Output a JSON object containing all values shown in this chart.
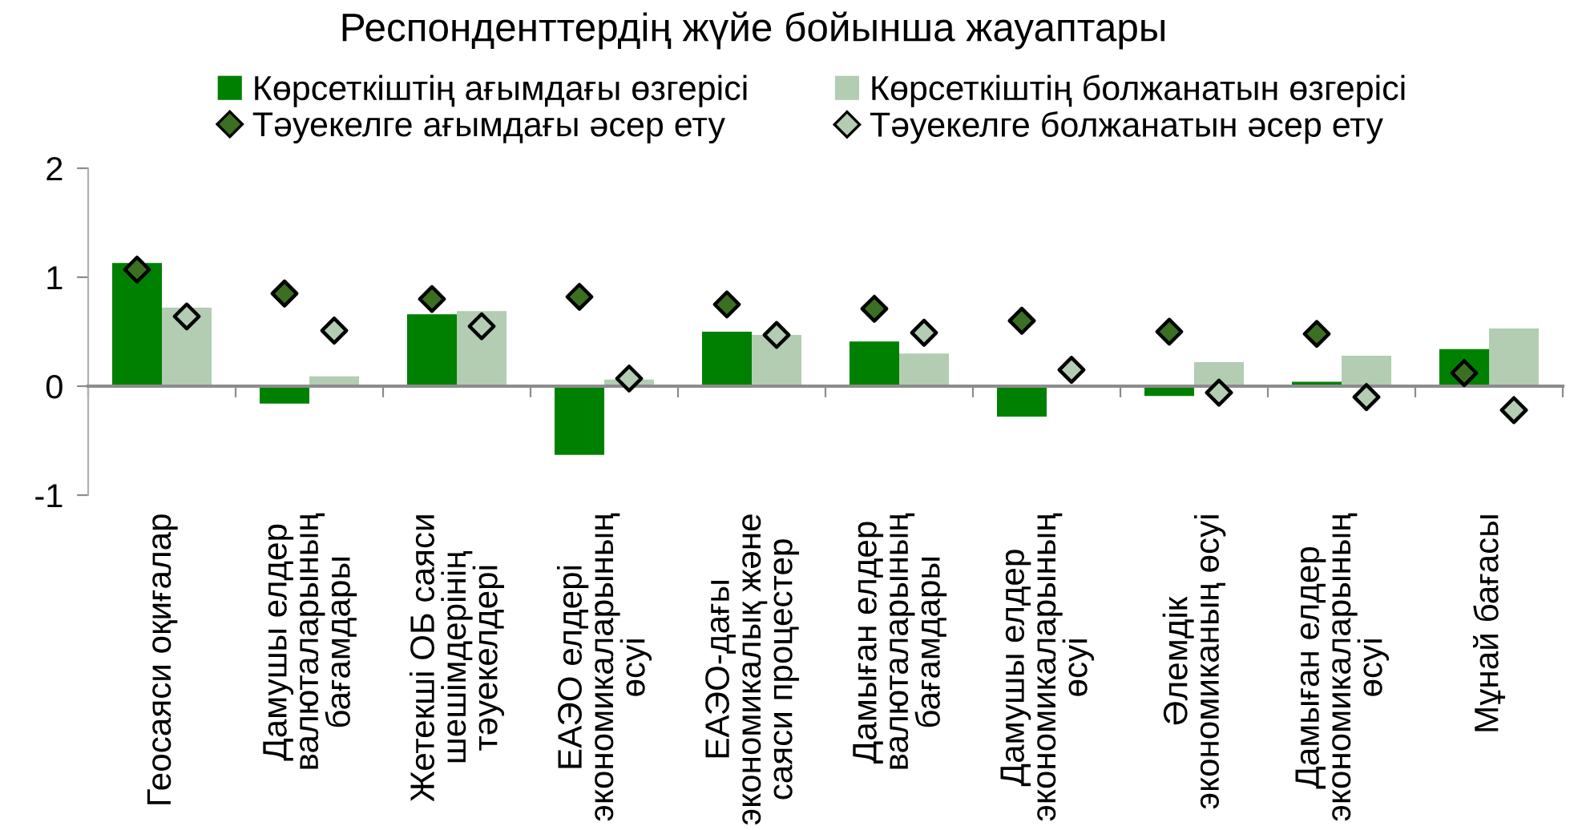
{
  "chart_data": {
    "type": "bar",
    "title": "Респонденттердің жүйе бойынша жауаптары",
    "categories": [
      "Геосаяси оқиғалар",
      "Дамушы елдер\nвалюталарының\nбағамдары",
      "Жетекші ОБ саяси\nшешімдерінің\nтәуекелдері",
      "ЕАЭО елдері\nэкономикаларының\nөсуі",
      "ЕАЭО-дағы\nэкономикалық және\nсаяси процестер",
      "Дамыған елдер\nвалюталарының\nбағамдары",
      "Дамушы елдер\nэкономикаларының\nөсуі",
      "Әлемдік\nэкономиканың өсуі",
      "Дамыған елдер\nэкономикаларының\nөсуі",
      "Мұнай бағасы"
    ],
    "series": [
      {
        "name": "Көрсеткіштің ағымдағы өзгерісі",
        "color": "#008000",
        "values": [
          1.13,
          -0.16,
          0.66,
          -0.63,
          0.5,
          0.41,
          -0.28,
          -0.09,
          0.04,
          0.34
        ]
      },
      {
        "name": "Көрсеткіштің болжанатын өзгерісі",
        "color": "#b2cdb2",
        "values": [
          0.72,
          0.09,
          0.69,
          0.06,
          0.47,
          0.3,
          0.0,
          0.22,
          0.28,
          0.53
        ]
      },
      {
        "name": "Тәуекелге ағымдағы әсер ету",
        "type": "scatter",
        "color": "#3b7022",
        "values": [
          1.07,
          0.85,
          0.8,
          0.82,
          0.75,
          0.71,
          0.6,
          0.5,
          0.48,
          0.12
        ]
      },
      {
        "name": "Тәуекелге болжанатын әсер ету",
        "type": "scatter",
        "color": "#b2cdb2",
        "values": [
          0.64,
          0.51,
          0.55,
          0.07,
          0.47,
          0.49,
          0.15,
          -0.06,
          -0.1,
          -0.22
        ]
      }
    ],
    "ylim": [
      -1,
      2
    ],
    "yticks": [
      -1,
      0,
      1,
      2
    ],
    "marker": "diamond",
    "legend": "top"
  }
}
